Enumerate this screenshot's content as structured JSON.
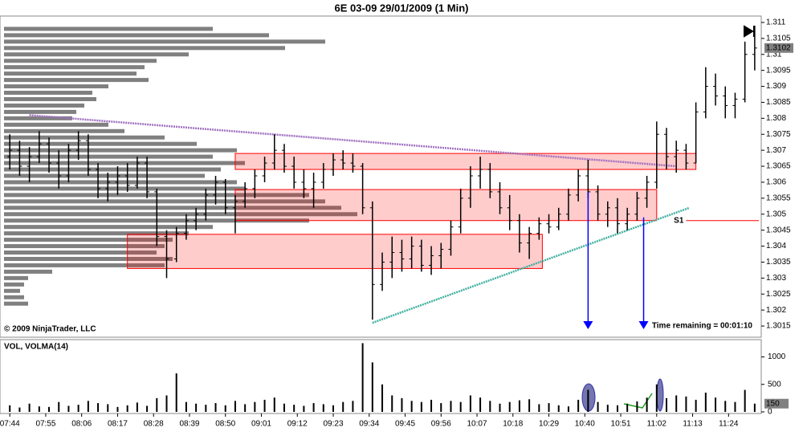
{
  "chart_data": [
    {
      "type": "ohlc",
      "title": "6E 03-09  29/01/2009 (1 Min)",
      "copyright": "© 2009 NinjaTrader, LLC",
      "time_remaining": "Time remaining = 00:01:10",
      "color": "#000000",
      "x": [
        "07:44",
        "07:47",
        "07:50",
        "07:53",
        "07:56",
        "07:59",
        "08:02",
        "08:05",
        "08:08",
        "08:11",
        "08:14",
        "08:17",
        "08:20",
        "08:23",
        "08:26",
        "08:29",
        "08:32",
        "08:35",
        "08:38",
        "08:41",
        "08:44",
        "08:47",
        "08:50",
        "08:53",
        "08:56",
        "08:59",
        "09:02",
        "09:05",
        "09:08",
        "09:11",
        "09:14",
        "09:17",
        "09:20",
        "09:23",
        "09:26",
        "09:29",
        "09:32",
        "09:35",
        "09:38",
        "09:41",
        "09:44",
        "09:47",
        "09:50",
        "09:53",
        "09:56",
        "09:59",
        "10:02",
        "10:05",
        "10:08",
        "10:11",
        "10:14",
        "10:17",
        "10:20",
        "10:23",
        "10:26",
        "10:29",
        "10:32",
        "10:35",
        "10:38",
        "10:41",
        "10:44",
        "10:47",
        "10:50",
        "10:53",
        "10:56",
        "10:59",
        "11:02",
        "11:05",
        "11:08",
        "11:11",
        "11:14",
        "11:17",
        "11:20",
        "11:23",
        "11:26",
        "11:29",
        "11:32"
      ],
      "open": [
        1.3068,
        1.307,
        1.3065,
        1.3068,
        1.3072,
        1.3066,
        1.3062,
        1.307,
        1.3073,
        1.3064,
        1.3058,
        1.306,
        1.3062,
        1.3059,
        1.3066,
        1.3057,
        1.3043,
        1.3036,
        1.3044,
        1.3048,
        1.305,
        1.3056,
        1.306,
        1.3052,
        1.3054,
        1.3058,
        1.3062,
        1.3066,
        1.307,
        1.3065,
        1.306,
        1.3058,
        1.306,
        1.3064,
        1.3067,
        1.3066,
        1.3065,
        1.3052,
        1.3028,
        1.3035,
        1.3038,
        1.3036,
        1.304,
        1.3034,
        1.3037,
        1.3039,
        1.3046,
        1.3055,
        1.3062,
        1.3064,
        1.3057,
        1.3052,
        1.3048,
        1.3041,
        1.3044,
        1.3047,
        1.3046,
        1.305,
        1.3056,
        1.3062,
        1.3057,
        1.305,
        1.3052,
        1.3047,
        1.305,
        1.3055,
        1.306,
        1.3075,
        1.3068,
        1.307,
        1.3066,
        1.3082,
        1.309,
        1.3087,
        1.3084,
        1.3086,
        1.31
      ],
      "high": [
        1.3075,
        1.3073,
        1.3071,
        1.3076,
        1.3074,
        1.307,
        1.3072,
        1.3076,
        1.3075,
        1.3066,
        1.3063,
        1.3065,
        1.3066,
        1.3068,
        1.3068,
        1.3058,
        1.3045,
        1.3046,
        1.305,
        1.3052,
        1.3058,
        1.3062,
        1.3061,
        1.3056,
        1.306,
        1.3064,
        1.3068,
        1.3075,
        1.3072,
        1.3068,
        1.3064,
        1.3063,
        1.3066,
        1.3069,
        1.307,
        1.3069,
        1.3066,
        1.3054,
        1.3038,
        1.3043,
        1.3042,
        1.3043,
        1.3042,
        1.304,
        1.3041,
        1.3048,
        1.3058,
        1.3065,
        1.3068,
        1.3066,
        1.306,
        1.3056,
        1.305,
        1.3046,
        1.3049,
        1.305,
        1.3052,
        1.3058,
        1.3064,
        1.3067,
        1.3059,
        1.3054,
        1.3055,
        1.3052,
        1.3057,
        1.3062,
        1.3079,
        1.3077,
        1.3073,
        1.3072,
        1.3085,
        1.3096,
        1.3094,
        1.309,
        1.3088,
        1.3104,
        1.3109
      ],
      "low": [
        1.3064,
        1.3062,
        1.306,
        1.3066,
        1.3063,
        1.3058,
        1.306,
        1.3067,
        1.3062,
        1.3055,
        1.3054,
        1.3056,
        1.3057,
        1.3058,
        1.3055,
        1.304,
        1.303,
        1.3035,
        1.3042,
        1.3045,
        1.3048,
        1.3053,
        1.305,
        1.3044,
        1.3052,
        1.3055,
        1.306,
        1.3064,
        1.3063,
        1.3058,
        1.3055,
        1.3052,
        1.3058,
        1.3062,
        1.3064,
        1.3063,
        1.305,
        1.3017,
        1.3026,
        1.303,
        1.3032,
        1.3033,
        1.3032,
        1.3031,
        1.3033,
        1.3037,
        1.3044,
        1.3052,
        1.3058,
        1.3055,
        1.305,
        1.3045,
        1.3038,
        1.3036,
        1.3042,
        1.3044,
        1.3045,
        1.3048,
        1.3054,
        1.3055,
        1.3048,
        1.3046,
        1.3044,
        1.3045,
        1.3048,
        1.3052,
        1.3058,
        1.3064,
        1.3063,
        1.3064,
        1.3066,
        1.308,
        1.3084,
        1.308,
        1.308,
        1.3085,
        1.3095
      ],
      "close": [
        1.307,
        1.3065,
        1.3068,
        1.3072,
        1.3066,
        1.3062,
        1.307,
        1.3073,
        1.3064,
        1.3058,
        1.306,
        1.3062,
        1.3059,
        1.3066,
        1.3057,
        1.3043,
        1.3036,
        1.3044,
        1.3048,
        1.305,
        1.3056,
        1.306,
        1.3052,
        1.3054,
        1.3058,
        1.3062,
        1.3066,
        1.307,
        1.3065,
        1.306,
        1.3058,
        1.306,
        1.3064,
        1.3067,
        1.3066,
        1.3065,
        1.3052,
        1.3028,
        1.3035,
        1.3038,
        1.3036,
        1.304,
        1.3034,
        1.3037,
        1.3039,
        1.3046,
        1.3055,
        1.3062,
        1.3064,
        1.3057,
        1.3052,
        1.3048,
        1.3041,
        1.3044,
        1.3047,
        1.3046,
        1.305,
        1.3056,
        1.3062,
        1.3057,
        1.305,
        1.3052,
        1.3047,
        1.305,
        1.3055,
        1.306,
        1.3075,
        1.3068,
        1.307,
        1.3066,
        1.3082,
        1.309,
        1.3087,
        1.3084,
        1.3086,
        1.31,
        1.3102
      ],
      "xlim": [
        "07:41",
        "11:34"
      ],
      "ylim": [
        1.3012,
        1.3112
      ],
      "yticks": [
        1.3015,
        1.302,
        1.3025,
        1.303,
        1.3035,
        1.304,
        1.3045,
        1.305,
        1.3055,
        1.306,
        1.3065,
        1.307,
        1.3075,
        1.308,
        1.3085,
        1.309,
        1.3095,
        1.31,
        1.3105,
        1.311
      ],
      "profile": {
        "color": "#808080",
        "xlim": [
          0,
          500
        ],
        "levels": [
          1.3108,
          1.3106,
          1.3104,
          1.3102,
          1.31,
          1.3098,
          1.3096,
          1.3094,
          1.3092,
          1.309,
          1.3088,
          1.3086,
          1.3084,
          1.3082,
          1.308,
          1.3078,
          1.3076,
          1.3074,
          1.3072,
          1.307,
          1.3068,
          1.3066,
          1.3064,
          1.3062,
          1.306,
          1.3058,
          1.3056,
          1.3054,
          1.3052,
          1.305,
          1.3048,
          1.3046,
          1.3044,
          1.3042,
          1.304,
          1.3038,
          1.3036,
          1.3034,
          1.3032,
          1.303,
          1.3028,
          1.3026,
          1.3024,
          1.3022
        ],
        "values": [
          260,
          330,
          400,
          350,
          230,
          190,
          175,
          165,
          180,
          130,
          110,
          115,
          100,
          90,
          85,
          130,
          150,
          200,
          240,
          290,
          260,
          300,
          270,
          250,
          290,
          300,
          380,
          400,
          420,
          440,
          380,
          260,
          230,
          210,
          200,
          190,
          210,
          200,
          60,
          30,
          25,
          20,
          25,
          30
        ]
      },
      "zones": [
        {
          "start": "08:53",
          "end": "11:14",
          "low": 1.3064,
          "high": 1.3069
        },
        {
          "start": "08:53",
          "end": "11:02",
          "low": 1.3048,
          "high": 1.30577
        },
        {
          "start": "08:20",
          "end": "10:27",
          "low": 1.3033,
          "high": 1.30437
        }
      ],
      "zone_color": "#ff0000",
      "trendlines": [
        {
          "color": "#a070c0",
          "x": [
            "07:50",
            "11:08"
          ],
          "y": [
            1.3081,
            1.3065
          ]
        },
        {
          "color": "#40b0a0",
          "x": [
            "09:35",
            "11:12"
          ],
          "y": [
            1.3016,
            1.3052
          ]
        }
      ],
      "arrows": [
        {
          "x": "10:41",
          "y": [
            1.3057,
            1.3014
          ]
        },
        {
          "x": "10:58",
          "y": [
            1.3049,
            1.3014
          ]
        }
      ],
      "arrow_color": "#0000ff",
      "level": {
        "label": "S1",
        "value": 1.3048,
        "color": "#ff0000",
        "start": "11:11"
      }
    },
    {
      "type": "bar",
      "title": "VOL, VOLMA(14)",
      "color": "#000000",
      "values": [
        120,
        80,
        150,
        100,
        90,
        180,
        110,
        130,
        200,
        160,
        140,
        90,
        120,
        170,
        110,
        250,
        300,
        700,
        180,
        150,
        130,
        160,
        120,
        200,
        140,
        180,
        220,
        260,
        150,
        130,
        110,
        160,
        140,
        120,
        180,
        200,
        1250,
        900,
        500,
        300,
        250,
        200,
        180,
        220,
        160,
        200,
        180,
        300,
        260,
        200,
        150,
        180,
        210,
        230,
        140,
        160,
        120,
        100,
        220,
        400,
        180,
        130,
        120,
        150,
        190,
        260,
        500,
        250,
        300,
        280,
        220,
        350,
        260,
        200,
        180,
        400,
        150
      ],
      "ylim": [
        0,
        1300
      ],
      "yticks": [
        0,
        500,
        1000
      ],
      "xticks": [
        "07:44",
        "07:55",
        "08:06",
        "08:17",
        "08:28",
        "08:39",
        "08:50",
        "09:01",
        "09:12",
        "09:23",
        "09:34",
        "09:45",
        "09:56",
        "10:07",
        "10:18",
        "10:29",
        "10:40",
        "10:51",
        "11:02",
        "11:13",
        "11:24"
      ]
    }
  ]
}
